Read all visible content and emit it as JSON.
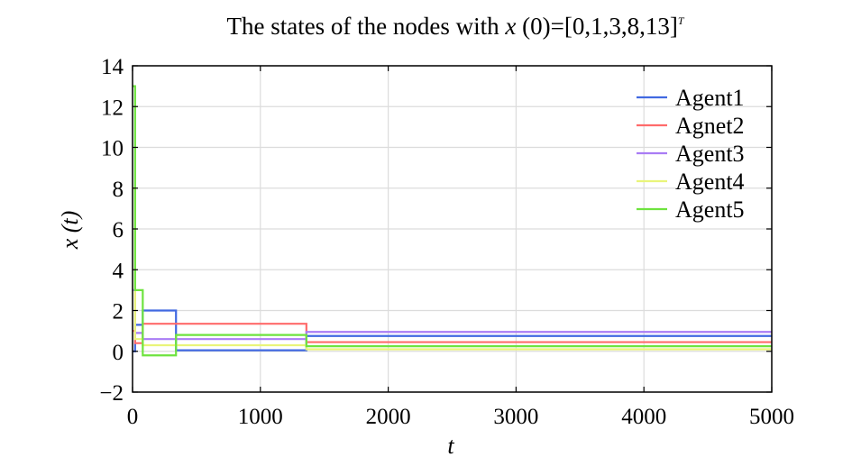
{
  "chart_data": {
    "type": "line",
    "title": {
      "prefix": "The states of the nodes with ",
      "var": "x",
      "mid": " (0)=[0,1,3,8,13]",
      "sup": "T"
    },
    "xlabel": "t",
    "ylabel": "x (t)",
    "xlim": [
      0,
      5000
    ],
    "ylim": [
      -2,
      14
    ],
    "xticks": [
      0,
      1000,
      2000,
      3000,
      4000,
      5000
    ],
    "yticks": [
      -2,
      0,
      2,
      4,
      6,
      8,
      10,
      12,
      14
    ],
    "ytick_labels": [
      "−2",
      "0",
      "2",
      "4",
      "6",
      "8",
      "10",
      "12",
      "14"
    ],
    "grid": true,
    "legend_position": "top-right",
    "step": true,
    "series": [
      {
        "name": "Agent1",
        "color": "#4169e1",
        "x": [
          0,
          20,
          80,
          340,
          1360,
          5000
        ],
        "y": [
          0,
          1.3,
          2.0,
          0.05,
          0.75,
          0.75
        ]
      },
      {
        "name": "Agnet2",
        "color": "#ff6b6b",
        "x": [
          0,
          20,
          80,
          340,
          1360,
          5000
        ],
        "y": [
          1,
          0.4,
          1.35,
          1.35,
          0.45,
          0.45
        ]
      },
      {
        "name": "Agent3",
        "color": "#a97cf5",
        "x": [
          0,
          20,
          80,
          340,
          1360,
          5000
        ],
        "y": [
          3,
          0.9,
          0.6,
          0.6,
          0.95,
          0.95
        ]
      },
      {
        "name": "Agent4",
        "color": "#e9f57a",
        "x": [
          0,
          20,
          80,
          340,
          1360,
          5000
        ],
        "y": [
          8,
          0.6,
          0.3,
          0.3,
          0.1,
          0.1
        ]
      },
      {
        "name": "Agent5",
        "color": "#6ee33f",
        "x": [
          0,
          20,
          80,
          340,
          1360,
          5000
        ],
        "y": [
          13,
          3.0,
          -0.2,
          0.8,
          0.25,
          0.25
        ]
      }
    ]
  }
}
